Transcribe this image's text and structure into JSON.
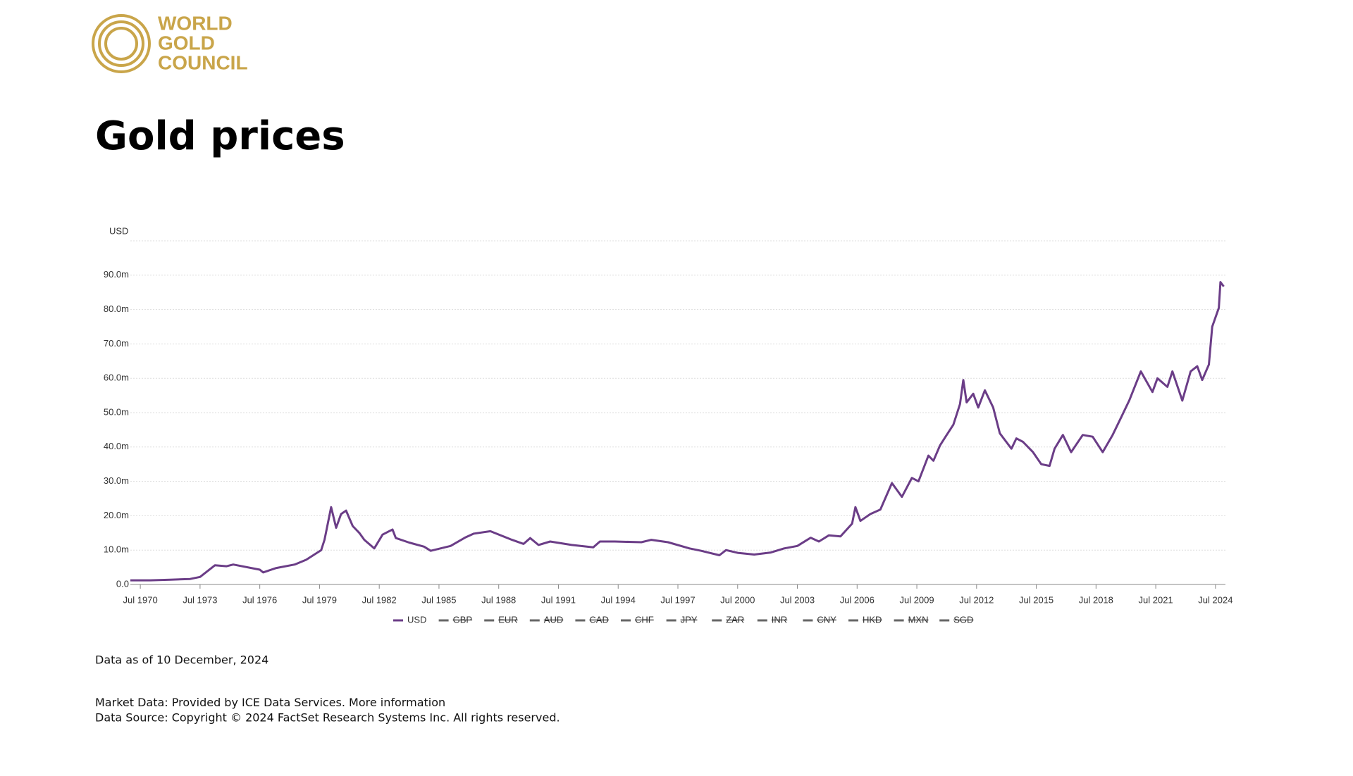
{
  "logo": {
    "lines": [
      "WORLD",
      "GOLD",
      "COUNCIL"
    ]
  },
  "chart_data": {
    "type": "line",
    "title": "Gold prices",
    "ylabel": "USD",
    "x": [
      "1970-01",
      "1971-01",
      "1972-01",
      "1973-01",
      "1973-07",
      "1974-04",
      "1974-11",
      "1975-03",
      "1976-07",
      "1976-09",
      "1977-05",
      "1978-04",
      "1978-11",
      "1979-08",
      "1979-10",
      "1980-02",
      "1980-05",
      "1980-08",
      "1980-11",
      "1981-03",
      "1981-07",
      "1981-10",
      "1982-04",
      "1982-09",
      "1983-03",
      "1983-05",
      "1984-01",
      "1984-10",
      "1985-02",
      "1986-02",
      "1986-11",
      "1987-04",
      "1988-02",
      "1989-03",
      "1989-10",
      "1990-02",
      "1990-07",
      "1991-02",
      "1992-03",
      "1993-04",
      "1993-08",
      "1994-05",
      "1995-09",
      "1996-03",
      "1997-01",
      "1998-02",
      "1998-09",
      "1999-08",
      "1999-12",
      "2000-07",
      "2001-05",
      "2002-03",
      "2002-11",
      "2003-07",
      "2004-03",
      "2004-08",
      "2005-02",
      "2005-09",
      "2006-04",
      "2006-06",
      "2006-09",
      "2007-03",
      "2007-09",
      "2008-04",
      "2008-10",
      "2009-04",
      "2009-08",
      "2010-02",
      "2010-05",
      "2010-09",
      "2011-01",
      "2011-05",
      "2011-09",
      "2011-11",
      "2012-01",
      "2012-05",
      "2012-08",
      "2012-12",
      "2013-05",
      "2013-09",
      "2014-04",
      "2014-07",
      "2014-11",
      "2015-05",
      "2015-10",
      "2016-03",
      "2016-06",
      "2016-11",
      "2017-04",
      "2017-11",
      "2018-05",
      "2018-11",
      "2019-05",
      "2019-10",
      "2020-03",
      "2020-10",
      "2021-05",
      "2021-08",
      "2022-02",
      "2022-05",
      "2022-11",
      "2023-04",
      "2023-08",
      "2023-11",
      "2024-03",
      "2024-05",
      "2024-09",
      "2024-10",
      "2024-12"
    ],
    "series": [
      {
        "name": "USD",
        "color": "#6b3d87",
        "values": [
          1.2,
          1.2,
          1.4,
          1.6,
          2.2,
          5.6,
          5.3,
          5.8,
          4.3,
          3.5,
          4.8,
          5.8,
          7.2,
          10,
          13,
          22.5,
          16.5,
          20.5,
          21.5,
          17,
          15,
          13,
          10.5,
          14.5,
          16,
          13.5,
          12.2,
          11,
          9.8,
          11.2,
          13.7,
          14.8,
          15.5,
          13,
          11.8,
          13.5,
          11.5,
          12.5,
          11.5,
          10.8,
          12.5,
          12.5,
          12.3,
          13,
          12.3,
          10.5,
          9.8,
          8.5,
          10,
          9.2,
          8.7,
          9.3,
          10.5,
          11.2,
          13.6,
          12.5,
          14.3,
          14,
          17.7,
          22.5,
          18.5,
          20.5,
          21.8,
          29.5,
          25.5,
          31,
          30,
          37.5,
          36,
          40.5,
          43.5,
          46.5,
          52.5,
          59.5,
          53,
          55.5,
          51.5,
          56.5,
          51.5,
          44,
          39.5,
          42.5,
          41.5,
          38.5,
          35,
          34.5,
          39.5,
          43.5,
          38.5,
          43.5,
          43,
          38.5,
          43.5,
          48.5,
          53.5,
          62,
          56,
          60,
          57.5,
          62,
          53.5,
          62,
          63.5,
          59.5,
          64,
          75,
          80.5,
          88,
          86.7
        ]
      }
    ],
    "legend_hidden": [
      "GBP",
      "EUR",
      "AUD",
      "CAD",
      "CHF",
      "JPY",
      "ZAR",
      "INR",
      "CNY",
      "HKD",
      "MXN",
      "SGD"
    ],
    "xlim": [
      "1970-01",
      "2025-01"
    ],
    "xticks": [
      {
        "value": "1970-07",
        "label": "Jul 1970"
      },
      {
        "value": "1973-07",
        "label": "Jul 1973"
      },
      {
        "value": "1976-07",
        "label": "Jul 1976"
      },
      {
        "value": "1979-07",
        "label": "Jul 1979"
      },
      {
        "value": "1982-07",
        "label": "Jul 1982"
      },
      {
        "value": "1985-07",
        "label": "Jul 1985"
      },
      {
        "value": "1988-07",
        "label": "Jul 1988"
      },
      {
        "value": "1991-07",
        "label": "Jul 1991"
      },
      {
        "value": "1994-07",
        "label": "Jul 1994"
      },
      {
        "value": "1997-07",
        "label": "Jul 1997"
      },
      {
        "value": "2000-07",
        "label": "Jul 2000"
      },
      {
        "value": "2003-07",
        "label": "Jul 2003"
      },
      {
        "value": "2006-07",
        "label": "Jul 2006"
      },
      {
        "value": "2009-07",
        "label": "Jul 2009"
      },
      {
        "value": "2012-07",
        "label": "Jul 2012"
      },
      {
        "value": "2015-07",
        "label": "Jul 2015"
      },
      {
        "value": "2018-07",
        "label": "Jul 2018"
      },
      {
        "value": "2021-07",
        "label": "Jul 2021"
      },
      {
        "value": "2024-07",
        "label": "Jul 2024"
      }
    ],
    "ylim": [
      0,
      100
    ],
    "yticks": [
      {
        "value": 0,
        "label": "0.0"
      },
      {
        "value": 10,
        "label": "10.0m"
      },
      {
        "value": 20,
        "label": "20.0m"
      },
      {
        "value": 30,
        "label": "30.0m"
      },
      {
        "value": 40,
        "label": "40.0m"
      },
      {
        "value": 50,
        "label": "50.0m"
      },
      {
        "value": 60,
        "label": "60.0m"
      },
      {
        "value": 70,
        "label": "70.0m"
      },
      {
        "value": 80,
        "label": "80.0m"
      },
      {
        "value": 90,
        "label": "90.0m"
      }
    ],
    "grid": true
  },
  "footer": {
    "as_of": "Data as of 10 December, 2024",
    "market": "Market Data: Provided by ICE Data Services.",
    "link": "More information",
    "source": "Data Source: Copyright © 2024 FactSet Research Systems Inc. All rights reserved."
  }
}
